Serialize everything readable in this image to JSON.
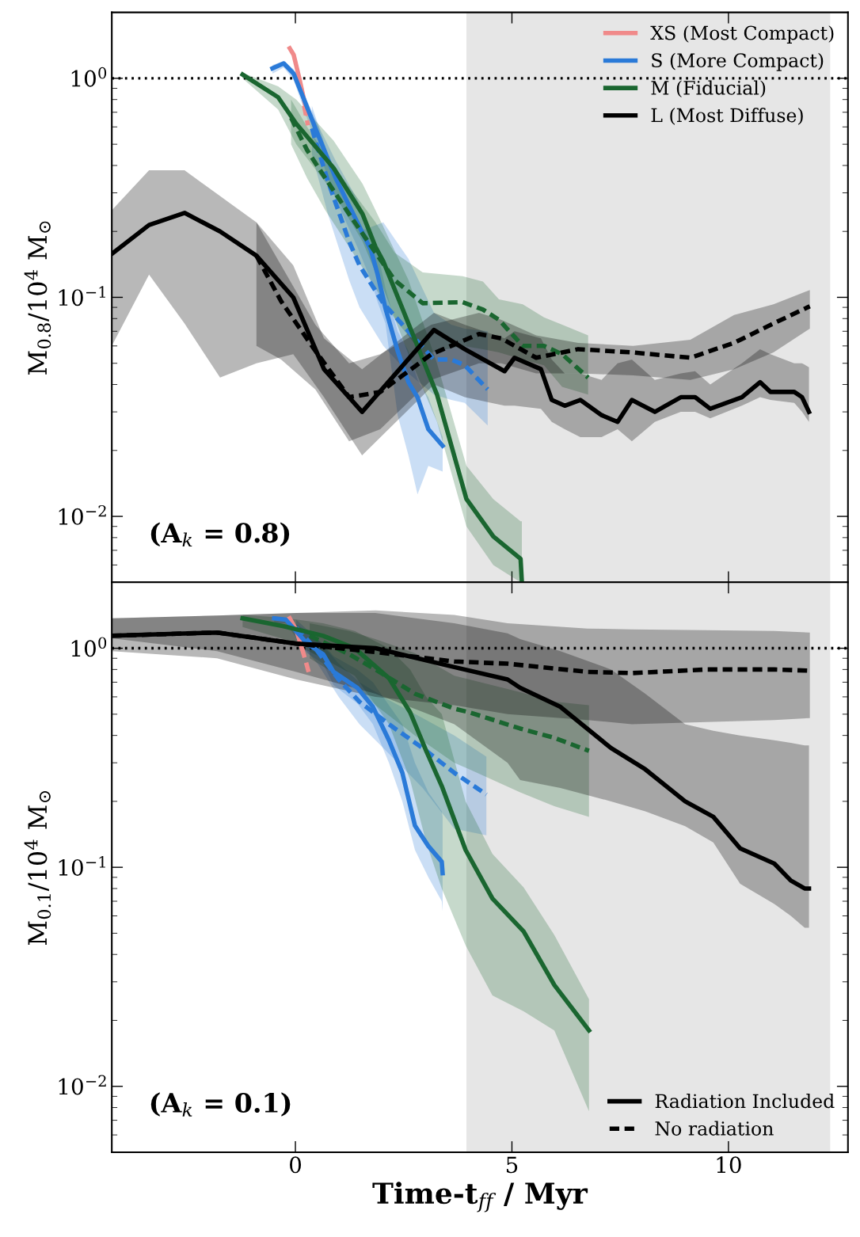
{
  "chart_data": [
    {
      "type": "line",
      "ylabel": "M$_{0.8}$/10$^{4}$ M$_{⊙}$",
      "log": "y",
      "xlim": [
        -4.24,
        12.76
      ],
      "xticks": [
        0,
        5,
        10
      ],
      "ylim": [
        0.005,
        2.0
      ],
      "yticks": [
        {
          "value": 0.01,
          "label": "10$^{−2}$"
        },
        {
          "value": 0.1,
          "label": "10$^{−1}$"
        },
        {
          "value": 1,
          "label": "10$^{0}$"
        }
      ],
      "tick_labels": "y",
      "legend": "top right",
      "annotations": [
        "(A$_{k}$ = 0.8)"
      ],
      "ref_lines": [
        {
          "axis": "y",
          "value": 1,
          "color": "#000000",
          "line_style": "dotted"
        }
      ],
      "bands": [
        {
          "axis": "x",
          "from": 3.95,
          "to": 12.35,
          "color": "#e6e6e6"
        }
      ],
      "series": [
        {
          "name": "XS (Most Compact)",
          "color": "#f08a8a",
          "line_style": "solid",
          "x": [
            -0.13,
            -0.04,
            0.09,
            0.27
          ],
          "values": [
            1.37,
            1.28,
            1.0,
            0.69
          ]
        },
        {
          "color": "#f08a8a",
          "line_style": "dashed",
          "x": [
            0.2,
            0.29
          ],
          "values": [
            0.75,
            0.61
          ]
        },
        {
          "name": "S (More Compact)",
          "color": "#2a7ad8",
          "line_style": "solid",
          "x": [
            -0.53,
            -0.27,
            -0.04,
            0.2,
            0.51,
            0.93,
            1.43,
            1.74,
            1.9,
            2.08,
            2.36,
            2.61,
            2.82,
            3.07,
            3.4
          ],
          "values": [
            1.11,
            1.17,
            1.05,
            0.8,
            0.56,
            0.35,
            0.22,
            0.165,
            0.127,
            0.089,
            0.057,
            0.041,
            0.035,
            0.025,
            0.021
          ],
          "upper": [
            1.15,
            1.2,
            1.1,
            0.85,
            0.62,
            0.42,
            0.28,
            0.2,
            0.16,
            0.11,
            0.07,
            0.057,
            0.042,
            0.035,
            0.023
          ],
          "lower": [
            1.05,
            1.12,
            0.98,
            0.72,
            0.48,
            0.28,
            0.17,
            0.12,
            0.095,
            0.076,
            0.029,
            0.019,
            0.0126,
            0.017,
            0.016
          ]
        },
        {
          "color": "#2a7ad8",
          "line_style": "dashed",
          "x": [
            0.38,
            0.75,
            1.24,
            1.48,
            2.03,
            2.61,
            3.2,
            3.6,
            3.91,
            4.44
          ],
          "values": [
            0.59,
            0.34,
            0.18,
            0.14,
            0.094,
            0.07,
            0.052,
            0.052,
            0.049,
            0.038
          ],
          "upper": [
            0.75,
            0.45,
            0.26,
            0.2,
            0.22,
            0.15,
            0.085,
            0.075,
            0.072,
            0.07
          ],
          "lower": [
            0.45,
            0.24,
            0.12,
            0.09,
            0.06,
            0.045,
            0.036,
            0.034,
            0.033,
            0.026
          ]
        },
        {
          "name": "M (Fiducial)",
          "color": "#1a6630",
          "line_style": "solid",
          "x": [
            -1.22,
            -0.4,
            0.02,
            0.88,
            1.55,
            1.85,
            2.03,
            2.61,
            3.27,
            3.95,
            4.57,
            5.2,
            5.23
          ],
          "values": [
            1.04,
            0.82,
            0.62,
            0.39,
            0.24,
            0.17,
            0.146,
            0.076,
            0.036,
            0.012,
            0.0081,
            0.0064,
            0.005
          ],
          "upper": [
            1.06,
            0.92,
            0.8,
            0.52,
            0.33,
            0.25,
            0.21,
            0.12,
            0.05,
            0.017,
            0.012,
            0.0095,
            0.0095
          ],
          "lower": [
            1.0,
            0.72,
            0.5,
            0.3,
            0.18,
            0.13,
            0.11,
            0.055,
            0.027,
            0.009,
            0.006,
            0.005,
            0.005
          ]
        },
        {
          "color": "#1a6630",
          "line_style": "dashed",
          "x": [
            -0.1,
            0.27,
            0.69,
            1.24,
            1.85,
            2.29,
            2.94,
            3.86,
            4.33,
            4.7,
            5.25,
            5.74,
            6.16,
            6.76
          ],
          "values": [
            0.66,
            0.47,
            0.35,
            0.24,
            0.16,
            0.12,
            0.094,
            0.095,
            0.088,
            0.079,
            0.06,
            0.06,
            0.055,
            0.043
          ],
          "upper": [
            0.8,
            0.6,
            0.45,
            0.32,
            0.22,
            0.16,
            0.13,
            0.125,
            0.118,
            0.098,
            0.093,
            0.081,
            0.075,
            0.067
          ],
          "lower": [
            0.5,
            0.35,
            0.25,
            0.17,
            0.11,
            0.08,
            0.055,
            0.06,
            0.058,
            0.056,
            0.052,
            0.049,
            0.039,
            0.036
          ]
        },
        {
          "name": "L (Most Diffuse)",
          "color": "#000000",
          "line_style": "solid",
          "x": [
            -4.24,
            -3.38,
            -2.56,
            -1.74,
            -0.9,
            -0.05,
            0.66,
            1.54,
            3.2,
            3.91,
            4.83,
            5.06,
            5.67,
            5.92,
            6.22,
            6.58,
            7.07,
            7.44,
            7.77,
            8.3,
            8.9,
            9.23,
            9.58,
            10.31,
            10.73,
            10.97,
            11.52,
            11.7,
            11.86
          ],
          "values": [
            0.158,
            0.214,
            0.243,
            0.2,
            0.155,
            0.1,
            0.047,
            0.03,
            0.071,
            0.058,
            0.046,
            0.053,
            0.047,
            0.034,
            0.032,
            0.034,
            0.029,
            0.027,
            0.034,
            0.03,
            0.035,
            0.035,
            0.031,
            0.035,
            0.041,
            0.037,
            0.037,
            0.035,
            0.03
          ],
          "upper": [
            0.25,
            0.38,
            0.38,
            0.29,
            0.22,
            0.14,
            0.065,
            0.047,
            0.085,
            0.075,
            0.065,
            0.07,
            0.065,
            0.052,
            0.045,
            0.045,
            0.042,
            0.05,
            0.052,
            0.042,
            0.045,
            0.046,
            0.04,
            0.05,
            0.058,
            0.055,
            0.05,
            0.05,
            0.048
          ],
          "lower": [
            0.06,
            0.127,
            0.076,
            0.043,
            0.05,
            0.055,
            0.035,
            0.019,
            0.04,
            0.035,
            0.032,
            0.032,
            0.031,
            0.027,
            0.025,
            0.023,
            0.023,
            0.025,
            0.022,
            0.027,
            0.03,
            0.03,
            0.028,
            0.032,
            0.035,
            0.034,
            0.033,
            0.03,
            0.027
          ]
        },
        {
          "color": "#000000",
          "line_style": "dashed",
          "x": [
            -0.9,
            -0.33,
            0.46,
            1.24,
            1.96,
            3.14,
            4.24,
            4.75,
            5.56,
            6.53,
            7.8,
            9.12,
            10.13,
            11.04,
            11.88
          ],
          "values": [
            0.155,
            0.096,
            0.057,
            0.035,
            0.037,
            0.055,
            0.068,
            0.065,
            0.053,
            0.058,
            0.056,
            0.053,
            0.062,
            0.076,
            0.091
          ],
          "upper": [
            0.22,
            0.14,
            0.075,
            0.05,
            0.055,
            0.075,
            0.085,
            0.079,
            0.067,
            0.062,
            0.06,
            0.064,
            0.083,
            0.093,
            0.108
          ],
          "lower": [
            0.06,
            0.052,
            0.038,
            0.022,
            0.025,
            0.042,
            0.05,
            0.05,
            0.045,
            0.045,
            0.044,
            0.042,
            0.047,
            0.056,
            0.072
          ]
        }
      ]
    },
    {
      "type": "line",
      "xlabel": "Time-t$_{ff}$ / Myr",
      "ylabel": "M$_{0.1}$/10$^{4}$ M$_{⊙}$",
      "log": "y",
      "xlim": [
        -4.24,
        12.76
      ],
      "xticks": [
        0,
        5,
        10
      ],
      "ylim": [
        0.005,
        2.0
      ],
      "yticks": [
        {
          "value": 0.01,
          "label": "10$^{−2}$"
        },
        {
          "value": 0.1,
          "label": "10$^{−1}$"
        },
        {
          "value": 1,
          "label": "10$^{0}$"
        }
      ],
      "legend": "bottom right",
      "annotations": [
        "(A$_{k}$ = 0.1)"
      ],
      "ref_lines": [
        {
          "axis": "y",
          "value": 1,
          "color": "#000000",
          "line_style": "dotted"
        }
      ],
      "bands": [
        {
          "axis": "x",
          "from": 3.95,
          "to": 12.35,
          "color": "#e6e6e6"
        }
      ],
      "series": [
        {
          "color": "#f08a8a",
          "line_style": "solid",
          "x": [
            -0.13,
            0.02,
            0.15
          ],
          "values": [
            1.37,
            1.21,
            1.0
          ]
        },
        {
          "color": "#f08a8a",
          "line_style": "dashed",
          "x": [
            0.15,
            0.24,
            0.33
          ],
          "values": [
            1.0,
            0.87,
            0.75
          ]
        },
        {
          "color": "#2a7ad8",
          "line_style": "solid",
          "x": [
            -0.49,
            -0.22,
            0.27,
            0.64,
            0.88,
            1.43,
            1.79,
            2.16,
            2.47,
            2.76,
            3.07,
            3.38,
            3.4
          ],
          "values": [
            1.37,
            1.35,
            1.05,
            0.94,
            0.78,
            0.66,
            0.54,
            0.38,
            0.27,
            0.155,
            0.125,
            0.106,
            0.094
          ],
          "upper": [
            1.4,
            1.38,
            1.2,
            1.05,
            0.92,
            0.8,
            0.7,
            0.55,
            0.45,
            0.3,
            0.22,
            0.18,
            0.17
          ],
          "lower": [
            1.3,
            1.3,
            0.95,
            0.85,
            0.68,
            0.56,
            0.45,
            0.3,
            0.2,
            0.12,
            0.09,
            0.07,
            0.063
          ]
        },
        {
          "color": "#2a7ad8",
          "line_style": "dashed",
          "x": [
            0.02,
            0.51,
            1.0,
            1.48,
            2.16,
            2.94,
            3.67,
            4.41
          ],
          "values": [
            1.24,
            0.97,
            0.72,
            0.57,
            0.45,
            0.35,
            0.27,
            0.215
          ],
          "upper": [
            1.35,
            1.1,
            0.85,
            0.7,
            0.58,
            0.48,
            0.4,
            0.32
          ],
          "lower": [
            1.1,
            0.85,
            0.6,
            0.45,
            0.33,
            0.23,
            0.15,
            0.14
          ]
        },
        {
          "color": "#1a6630",
          "line_style": "solid",
          "x": [
            -1.22,
            -0.27,
            0.64,
            1.37,
            2.16,
            2.65,
            3.02,
            3.38,
            3.93,
            4.55,
            5.27,
            5.98,
            6.78
          ],
          "values": [
            1.37,
            1.26,
            1.14,
            1.0,
            0.73,
            0.51,
            0.34,
            0.235,
            0.12,
            0.072,
            0.051,
            0.029,
            0.018
          ],
          "upper": [
            1.42,
            1.38,
            1.3,
            1.2,
            1.0,
            0.8,
            0.6,
            0.5,
            0.2,
            0.115,
            0.081,
            0.049,
            0.025
          ],
          "lower": [
            1.25,
            1.1,
            0.9,
            0.75,
            0.45,
            0.25,
            0.13,
            0.08,
            0.044,
            0.026,
            0.022,
            0.018,
            0.0077
          ]
        },
        {
          "color": "#1a6630",
          "line_style": "dashed",
          "x": [
            0.33,
            1.24,
            1.85,
            2.76,
            3.67,
            4.02,
            5.19,
            5.98,
            6.78
          ],
          "values": [
            1.14,
            0.94,
            0.8,
            0.62,
            0.53,
            0.51,
            0.43,
            0.39,
            0.34
          ],
          "upper": [
            1.3,
            1.2,
            1.1,
            0.95,
            0.75,
            0.72,
            0.63,
            0.57,
            0.55
          ],
          "lower": [
            0.9,
            0.7,
            0.55,
            0.4,
            0.3,
            0.28,
            0.22,
            0.19,
            0.17
          ]
        },
        {
          "name": "Radiation Included",
          "color": "#000000",
          "line_style": "solid",
          "x": [
            -4.24,
            -1.81,
            0.02,
            1.85,
            3.67,
            4.9,
            5.19,
            6.12,
            7.29,
            8.08,
            9.0,
            9.65,
            10.27,
            11.06,
            11.44,
            11.76,
            11.86
          ],
          "values": [
            1.14,
            1.18,
            1.05,
            1.0,
            0.82,
            0.72,
            0.66,
            0.54,
            0.35,
            0.28,
            0.2,
            0.17,
            0.122,
            0.104,
            0.087,
            0.08,
            0.08
          ],
          "upper": [
            1.37,
            1.41,
            1.45,
            1.45,
            1.3,
            1.17,
            1.1,
            0.97,
            0.8,
            0.62,
            0.45,
            0.42,
            0.4,
            0.38,
            0.37,
            0.36,
            0.36
          ],
          "lower": [
            1.11,
            0.97,
            0.78,
            0.62,
            0.45,
            0.3,
            0.25,
            0.23,
            0.2,
            0.18,
            0.154,
            0.13,
            0.084,
            0.068,
            0.06,
            0.053,
            0.053
          ]
        },
        {
          "name": "No radiation",
          "color": "#000000",
          "line_style": "dashed",
          "x": [
            -4.24,
            -1.81,
            0.02,
            1.85,
            3.67,
            4.9,
            6.75,
            7.77,
            9.49,
            11.06,
            11.88
          ],
          "values": [
            1.14,
            1.18,
            1.05,
            0.96,
            0.87,
            0.85,
            0.78,
            0.77,
            0.8,
            0.8,
            0.79
          ],
          "upper": [
            1.37,
            1.41,
            1.45,
            1.49,
            1.42,
            1.3,
            1.23,
            1.22,
            1.21,
            1.2,
            1.18
          ],
          "lower": [
            0.97,
            0.9,
            0.72,
            0.6,
            0.55,
            0.5,
            0.47,
            0.45,
            0.46,
            0.47,
            0.48
          ]
        }
      ]
    }
  ]
}
